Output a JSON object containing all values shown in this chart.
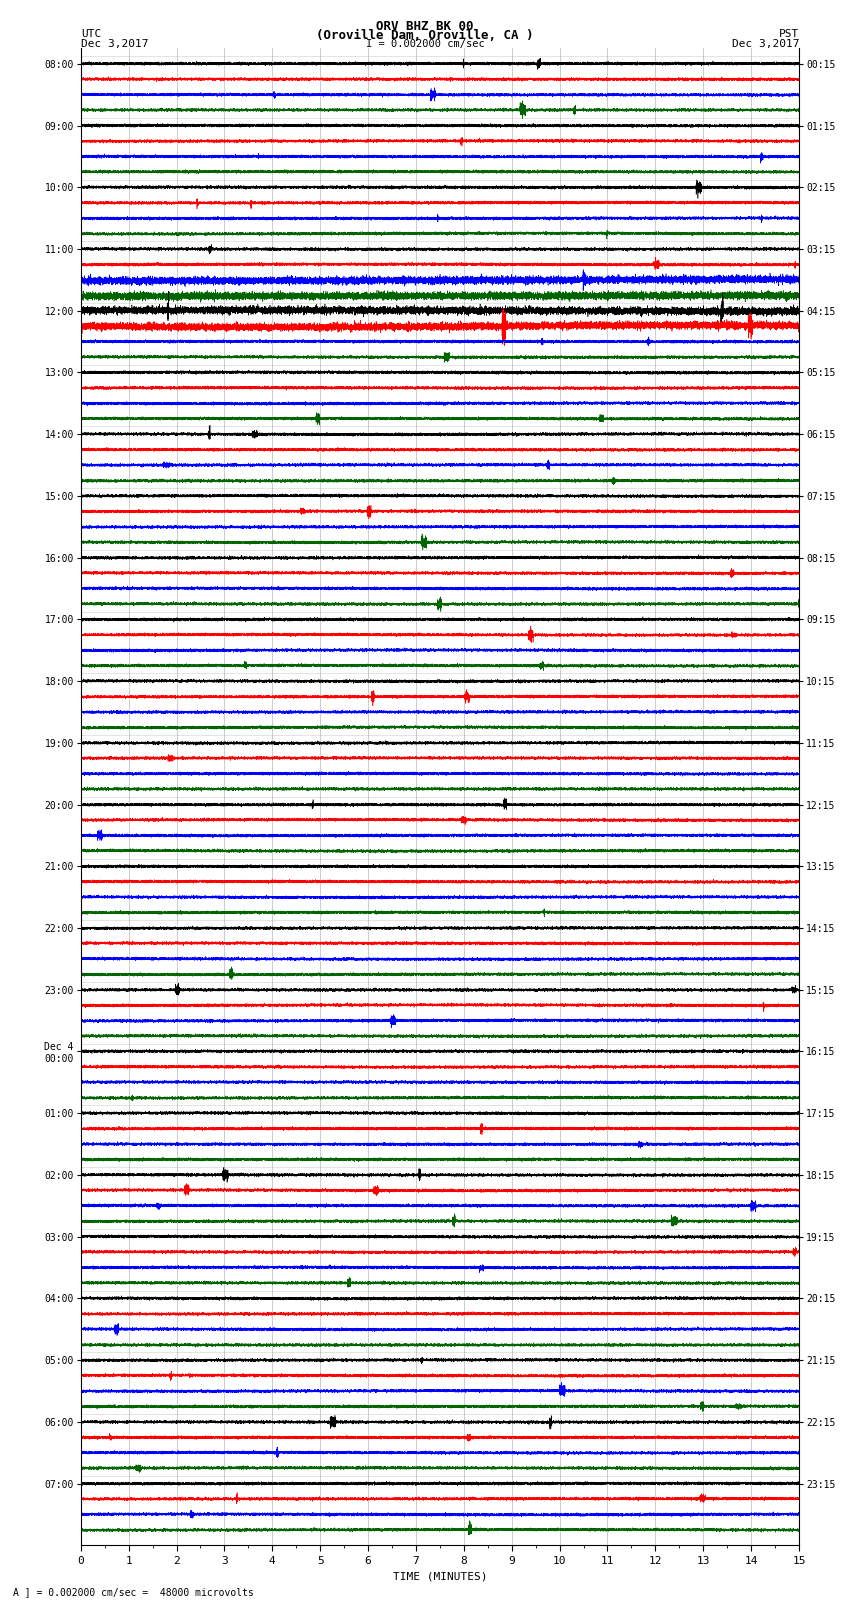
{
  "title_line1": "ORV BHZ BK 00",
  "title_line2": "(Oroville Dam, Oroville, CA )",
  "title_line3": "I = 0.002000 cm/sec",
  "label_left_top1": "UTC",
  "label_left_top2": "Dec 3,2017",
  "label_right_top1": "PST",
  "label_right_top2": "Dec 3,2017",
  "xlabel": "TIME (MINUTES)",
  "footer": "A ] = 0.002000 cm/sec =  48000 microvolts",
  "background_color": "#ffffff",
  "trace_colors": [
    "#000000",
    "#ff0000",
    "#0000ff",
    "#006400"
  ],
  "utc_hour_labels": [
    "08:00",
    "09:00",
    "10:00",
    "11:00",
    "12:00",
    "13:00",
    "14:00",
    "15:00",
    "16:00",
    "17:00",
    "18:00",
    "19:00",
    "20:00",
    "21:00",
    "22:00",
    "23:00",
    "Dec 4\n00:00",
    "01:00",
    "02:00",
    "03:00",
    "04:00",
    "05:00",
    "06:00",
    "07:00"
  ],
  "pst_hour_labels": [
    "00:15",
    "01:15",
    "02:15",
    "03:15",
    "04:15",
    "05:15",
    "06:15",
    "07:15",
    "08:15",
    "09:15",
    "10:15",
    "11:15",
    "12:15",
    "13:15",
    "14:15",
    "15:15",
    "16:15",
    "17:15",
    "18:15",
    "19:15",
    "20:15",
    "21:15",
    "22:15",
    "23:15"
  ],
  "num_rows": 96,
  "traces_per_row": 4,
  "minutes": 15,
  "sample_rate": 20,
  "amplitude_scale": 0.32,
  "special_rows": [
    14,
    15,
    16,
    17
  ],
  "special_amplitude": 2.8,
  "grid_color": "#888888",
  "num_hours": 24
}
